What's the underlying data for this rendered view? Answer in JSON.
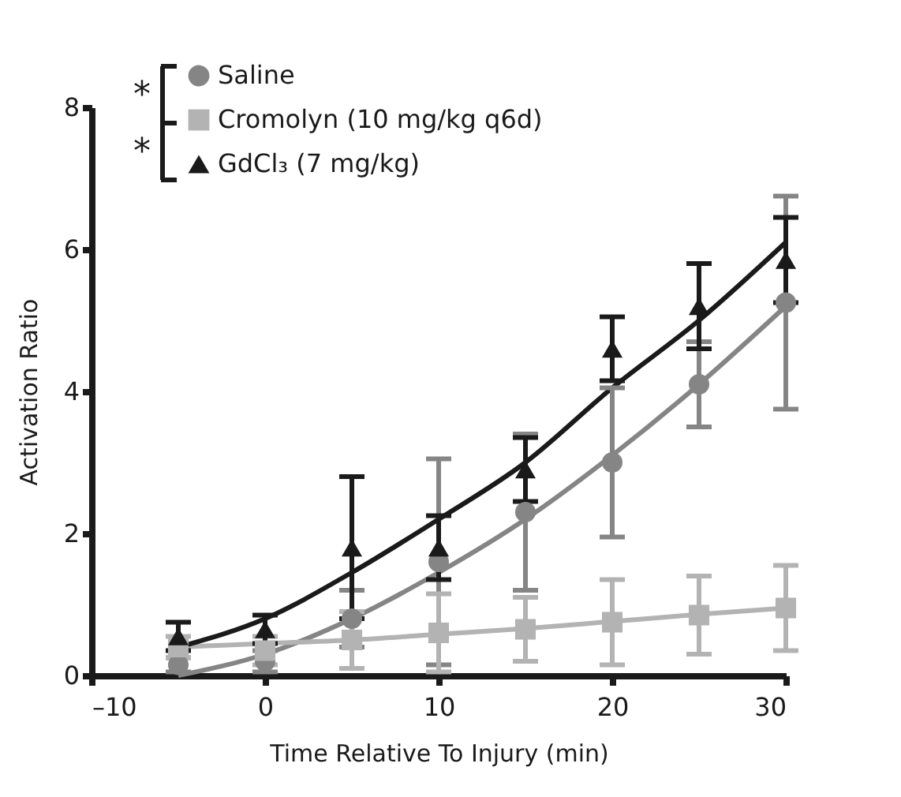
{
  "chart_data": {
    "type": "scatter",
    "xlabel": "Time Relative To Injury (min)",
    "ylabel": "Activation Ratio",
    "x": [
      -5,
      0,
      5,
      10,
      15,
      20,
      25,
      30
    ],
    "xlim": [
      -10,
      30
    ],
    "xticks": [
      {
        "value": -10,
        "label": "–10"
      },
      0,
      10,
      20,
      30
    ],
    "ylim": [
      0,
      8
    ],
    "yticks": [
      0,
      2,
      4,
      6,
      8
    ],
    "grid": false,
    "legend": "top left",
    "annotations": [
      "*",
      "*"
    ],
    "series": [
      {
        "name": "Saline",
        "color": "#858585",
        "marker": "circle",
        "values": [
          0.15,
          0.2,
          0.8,
          1.6,
          2.3,
          3.0,
          4.1,
          5.25
        ],
        "errors": [
          0.1,
          0.15,
          0.4,
          1.45,
          1.1,
          1.05,
          0.6,
          1.5
        ]
      },
      {
        "name": "Cromolyn (10 mg/kg q6d)",
        "color": "#b3b3b3",
        "marker": "square",
        "values": [
          0.4,
          0.35,
          0.5,
          0.6,
          0.65,
          0.75,
          0.85,
          0.95
        ],
        "errors": [
          0.15,
          0.2,
          0.4,
          0.55,
          0.45,
          0.6,
          0.55,
          0.6
        ]
      },
      {
        "name": "GdCl₃ (7 mg/kg)",
        "color": "#1a1a1a",
        "marker": "triangle",
        "values": [
          0.55,
          0.65,
          1.8,
          1.8,
          2.9,
          4.6,
          5.2,
          5.85
        ],
        "errors": [
          0.2,
          0.2,
          1.0,
          0.45,
          0.45,
          0.45,
          0.6,
          0.6
        ]
      },
      {
        "type": "line",
        "color": "#858585",
        "values": [
          0.0,
          0.3,
          0.8,
          1.45,
          2.2,
          3.1,
          4.1,
          5.2
        ]
      },
      {
        "type": "line",
        "color": "#b3b3b3",
        "values": [
          0.4,
          0.45,
          0.5,
          0.58,
          0.66,
          0.76,
          0.86,
          0.95
        ]
      },
      {
        "type": "line",
        "color": "#1a1a1a",
        "values": [
          0.4,
          0.8,
          1.45,
          2.2,
          3.0,
          4.05,
          5.0,
          6.1
        ]
      }
    ]
  }
}
